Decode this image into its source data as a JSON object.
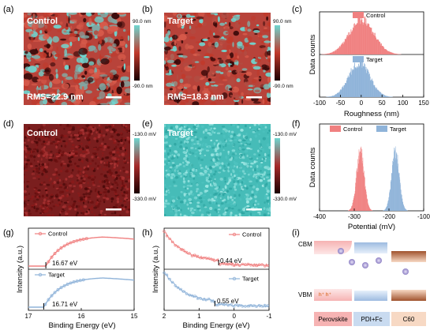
{
  "panel_labels": [
    "(a)",
    "(b)",
    "(c)",
    "(d)",
    "(e)",
    "(f)",
    "(g)",
    "(h)",
    "(i)"
  ],
  "afm": {
    "a": {
      "label": "Control",
      "rms": "RMS=22.9 nm"
    },
    "b": {
      "label": "Target",
      "rms": "RMS=18.3 nm"
    },
    "colorbar": {
      "max": "90.0 nm",
      "min": "-90.0 nm"
    }
  },
  "kpfm": {
    "d": {
      "label": "Control"
    },
    "e": {
      "label": "Target"
    },
    "colorbar": {
      "max": "-130.0 mV",
      "min": "-330.0 mV"
    }
  },
  "colors": {
    "control": "#f08080",
    "target": "#8fb3d9",
    "afm_dark": "#3a0a0a",
    "afm_red": "#c0392b",
    "afm_cyan": "#6fd6d0",
    "kpfm_red": "#8b1a1a",
    "kpfm_cyan": "#4fc3c0"
  },
  "chart_data": [
    {
      "panel": "c",
      "type": "area",
      "xlabel": "Roughness (nm)",
      "ylabel": "Data counts",
      "xlim": [
        -100,
        150
      ],
      "xticks": [
        "-100",
        "-50",
        "0",
        "50",
        "100",
        "150"
      ],
      "series": [
        {
          "name": "Control",
          "center": 0,
          "width": 30
        },
        {
          "name": "Target",
          "center": -5,
          "width": 25
        }
      ]
    },
    {
      "panel": "f",
      "type": "area",
      "xlabel": "Potential (mV)",
      "ylabel": "Data counts",
      "xlim": [
        -400,
        -100
      ],
      "xticks": [
        "-400",
        "-300",
        "-200",
        "-100"
      ],
      "series": [
        {
          "name": "Control",
          "center": -283,
          "width": 11
        },
        {
          "name": "Target",
          "center": -182,
          "width": 11
        }
      ]
    },
    {
      "panel": "g",
      "type": "line",
      "xlabel": "Binding Energy (eV)",
      "ylabel": "Intensity (a.u.)",
      "xlim": [
        17,
        15
      ],
      "xticks": [
        "17",
        "16",
        "15"
      ],
      "series": [
        {
          "name": "Control",
          "cutoff": 16.67,
          "annotation": "16.67 eV"
        },
        {
          "name": "Target",
          "cutoff": 16.71,
          "annotation": "16.71 eV"
        }
      ]
    },
    {
      "panel": "h",
      "type": "line",
      "xlabel": "Binding Energy (eV)",
      "ylabel": "Intensity (a.u.)",
      "xlim": [
        2,
        -1
      ],
      "xticks": [
        "2",
        "1",
        "0",
        "-1"
      ],
      "series": [
        {
          "name": "Control",
          "onset": 0.44,
          "annotation": "0.44 eV"
        },
        {
          "name": "Target",
          "onset": 0.55,
          "annotation": "0.55 eV"
        }
      ]
    }
  ],
  "schematic": {
    "cbm": "CBM",
    "vbm": "VBM",
    "layers": [
      "Perovskite",
      "PDI+Fc",
      "C60"
    ],
    "holes": "h⁺ h⁺"
  }
}
